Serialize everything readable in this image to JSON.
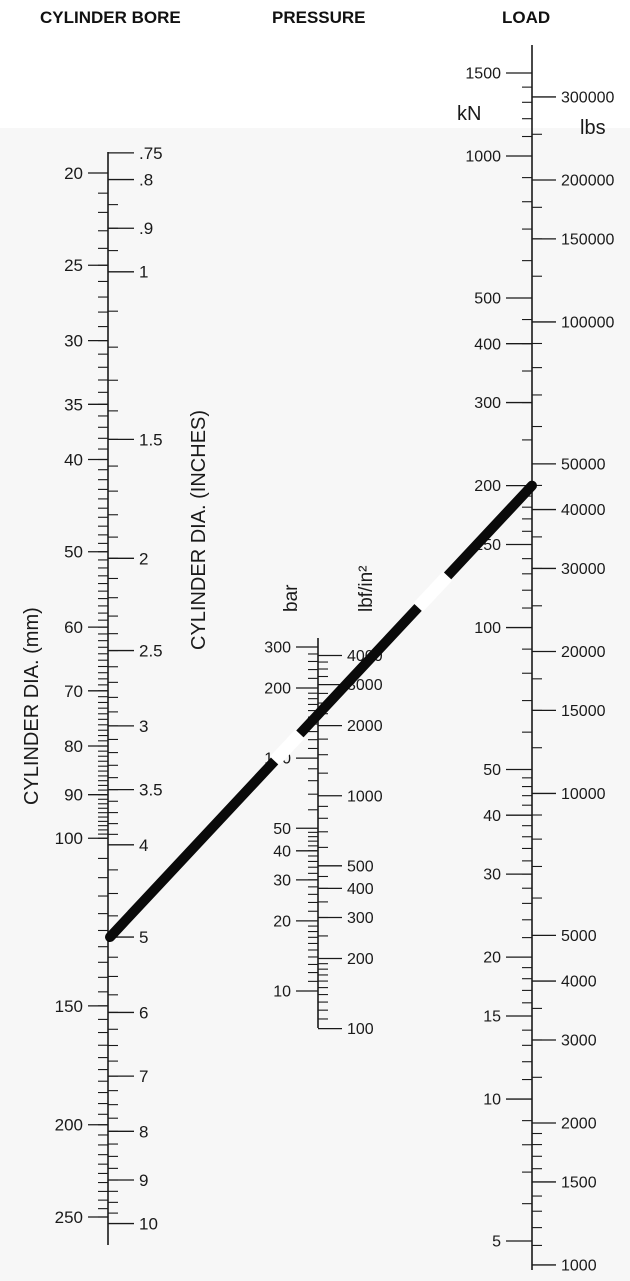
{
  "headers": {
    "bore": "CYLINDER BORE",
    "pressure": "PRESSURE",
    "load": "LOAD"
  },
  "axis_labels": {
    "mm": "CYLINDER DIA. (mm)",
    "inches": "CYLINDER DIA. (INCHES)",
    "bar": "bar",
    "psi": "lbf/in²",
    "kn": "kN",
    "lbs": "lbs"
  },
  "scales": {
    "mm": [
      {
        "v": 20,
        "label": "20"
      },
      {
        "v": 25,
        "label": "25"
      },
      {
        "v": 30,
        "label": "30"
      },
      {
        "v": 35,
        "label": "35"
      },
      {
        "v": 40,
        "label": "40"
      },
      {
        "v": 50,
        "label": "50"
      },
      {
        "v": 60,
        "label": "60"
      },
      {
        "v": 70,
        "label": "70"
      },
      {
        "v": 80,
        "label": "80"
      },
      {
        "v": 90,
        "label": "90"
      },
      {
        "v": 100,
        "label": "100"
      },
      {
        "v": 150,
        "label": "150"
      },
      {
        "v": 200,
        "label": "200"
      },
      {
        "v": 250,
        "label": "250"
      }
    ],
    "inches": [
      {
        "v": 0.75,
        "label": ".75"
      },
      {
        "v": 0.8,
        "label": ".8"
      },
      {
        "v": 0.9,
        "label": ".9"
      },
      {
        "v": 1,
        "label": "1"
      },
      {
        "v": 1.5,
        "label": "1.5"
      },
      {
        "v": 2,
        "label": "2"
      },
      {
        "v": 2.5,
        "label": "2.5"
      },
      {
        "v": 3,
        "label": "3"
      },
      {
        "v": 3.5,
        "label": "3.5"
      },
      {
        "v": 4,
        "label": "4"
      },
      {
        "v": 5,
        "label": "5"
      },
      {
        "v": 6,
        "label": "6"
      },
      {
        "v": 7,
        "label": "7"
      },
      {
        "v": 8,
        "label": "8"
      },
      {
        "v": 9,
        "label": "9"
      },
      {
        "v": 10,
        "label": "10"
      }
    ],
    "bar": [
      {
        "v": 300,
        "label": "300"
      },
      {
        "v": 200,
        "label": "200"
      },
      {
        "v": 100,
        "label": "100"
      },
      {
        "v": 50,
        "label": "50"
      },
      {
        "v": 40,
        "label": "40"
      },
      {
        "v": 30,
        "label": "30"
      },
      {
        "v": 20,
        "label": "20"
      },
      {
        "v": 10,
        "label": "10"
      }
    ],
    "psi": [
      {
        "v": 4000,
        "label": "4000"
      },
      {
        "v": 3000,
        "label": "3000"
      },
      {
        "v": 2000,
        "label": "2000"
      },
      {
        "v": 1000,
        "label": "1000"
      },
      {
        "v": 500,
        "label": "500"
      },
      {
        "v": 400,
        "label": "400"
      },
      {
        "v": 300,
        "label": "300"
      },
      {
        "v": 200,
        "label": "200"
      },
      {
        "v": 100,
        "label": "100"
      }
    ],
    "kn": [
      {
        "v": 1500,
        "label": "1500"
      },
      {
        "v": 1000,
        "label": "1000"
      },
      {
        "v": 500,
        "label": "500"
      },
      {
        "v": 400,
        "label": "400"
      },
      {
        "v": 300,
        "label": "300"
      },
      {
        "v": 200,
        "label": "200"
      },
      {
        "v": 150,
        "label": "150"
      },
      {
        "v": 100,
        "label": "100"
      },
      {
        "v": 50,
        "label": "50"
      },
      {
        "v": 40,
        "label": "40"
      },
      {
        "v": 30,
        "label": "30"
      },
      {
        "v": 20,
        "label": "20"
      },
      {
        "v": 15,
        "label": "15"
      },
      {
        "v": 10,
        "label": "10"
      },
      {
        "v": 5,
        "label": "5"
      }
    ],
    "lbs": [
      {
        "v": 300000,
        "label": "300000"
      },
      {
        "v": 200000,
        "label": "200000"
      },
      {
        "v": 150000,
        "label": "150000"
      },
      {
        "v": 100000,
        "label": "100000"
      },
      {
        "v": 50000,
        "label": "50000"
      },
      {
        "v": 40000,
        "label": "40000"
      },
      {
        "v": 30000,
        "label": "30000"
      },
      {
        "v": 20000,
        "label": "20000"
      },
      {
        "v": 15000,
        "label": "15000"
      },
      {
        "v": 10000,
        "label": "10000"
      },
      {
        "v": 5000,
        "label": "5000"
      },
      {
        "v": 4000,
        "label": "4000"
      },
      {
        "v": 3000,
        "label": "3000"
      },
      {
        "v": 2000,
        "label": "2000"
      },
      {
        "v": 1500,
        "label": "1500"
      },
      {
        "v": 1000,
        "label": "1000"
      }
    ]
  },
  "example_line": {
    "bore_inches": 5,
    "pressure_bar": 210,
    "load_kn": 200
  }
}
